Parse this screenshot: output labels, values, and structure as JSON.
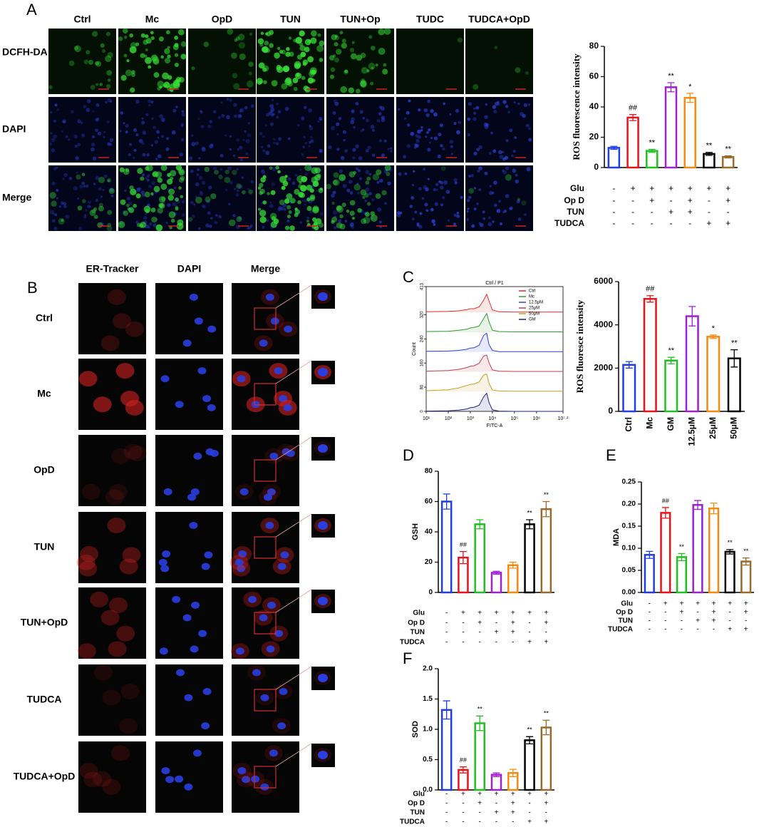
{
  "panel_a": {
    "letter": "A",
    "columns": [
      "Ctrl",
      "Mc",
      "OpD",
      "TUN",
      "TUN+Op",
      "TUDC",
      "TUDCA+OpD"
    ],
    "rows": [
      "DCFH-DA",
      "DAPI",
      "Merge"
    ]
  },
  "panel_b": {
    "letter": "B",
    "columns": [
      "ER-Tracker",
      "DAPI",
      "Merge"
    ],
    "rows": [
      "Ctrl",
      "Mc",
      "OpD",
      "TUN",
      "TUN+OpD",
      "TUDCA",
      "TUDCA+OpD"
    ]
  },
  "chart_data": [
    {
      "type": "bar",
      "ylabel": "ROS fluorescence intensity",
      "categories": [
        null,
        null,
        null,
        null,
        null,
        null,
        null
      ],
      "values": [
        13,
        33,
        11,
        53,
        46,
        9,
        7
      ],
      "errors": [
        1,
        2,
        1,
        3,
        3,
        1,
        0.7
      ],
      "annotations": [
        null,
        "##",
        "**",
        "**",
        "*",
        "**",
        "**"
      ],
      "colors": [
        "#1f3fe0",
        "#e8121a",
        "#20c020",
        "#a020d0",
        "#f58a10",
        "#000000",
        "#9a6a2a"
      ],
      "ylim": [
        0,
        80
      ],
      "yticks": [
        0,
        20,
        40,
        60,
        80
      ],
      "treatments": {
        "labels": [
          "Glu",
          "Op D",
          "TUN",
          "TUDCA"
        ],
        "signs": [
          [
            "-",
            "+",
            "+",
            "+",
            "+",
            "+",
            "+"
          ],
          [
            "-",
            "-",
            "+",
            "-",
            "+",
            "-",
            "+"
          ],
          [
            "-",
            "-",
            "-",
            "+",
            "+",
            "-",
            "-"
          ],
          [
            "-",
            "-",
            "-",
            "-",
            "-",
            "+",
            "+"
          ]
        ]
      }
    },
    {
      "type": "flow",
      "letter": "C",
      "title": "Ctrl / P1",
      "xlabel": "FITC-A",
      "ylabel": "Count",
      "xscale": "log",
      "x": [
        10,
        100,
        300,
        700,
        1000,
        1500,
        2500,
        4000,
        5500,
        7000,
        10000,
        20000,
        100000,
        1000000,
        15848932
      ],
      "series": [
        {
          "name": "Ctrl",
          "color": "#e03030",
          "values": [
            2,
            3,
            5,
            9,
            12,
            12,
            18,
            40,
            60,
            38,
            8,
            2,
            1,
            1,
            1
          ]
        },
        {
          "name": "Mc",
          "color": "#30a030",
          "values": [
            2,
            3,
            6,
            10,
            14,
            16,
            20,
            45,
            62,
            35,
            6,
            2,
            1,
            1,
            1
          ]
        },
        {
          "name": "12.5μM",
          "color": "#3040e0",
          "values": [
            2,
            3,
            5,
            9,
            13,
            14,
            22,
            55,
            62,
            25,
            5,
            1,
            1,
            1,
            1
          ]
        },
        {
          "name": "25μM",
          "color": "#c04050",
          "values": [
            2,
            4,
            8,
            14,
            18,
            20,
            28,
            52,
            55,
            30,
            6,
            2,
            1,
            1,
            1
          ]
        },
        {
          "name": "50μM",
          "color": "#c8a020",
          "values": [
            3,
            6,
            12,
            20,
            24,
            25,
            32,
            55,
            58,
            28,
            5,
            2,
            1,
            1,
            1
          ]
        },
        {
          "name": "GM",
          "color": "#202080",
          "values": [
            1,
            2,
            4,
            8,
            12,
            14,
            20,
            48,
            60,
            30,
            5,
            1,
            0,
            0,
            0
          ]
        }
      ],
      "xlim": [
        10,
        15848932
      ],
      "xticks": [
        {
          "value": 10,
          "label": "10¹"
        },
        {
          "value": 100,
          "label": "10²"
        },
        {
          "value": 1000,
          "label": "10³"
        },
        {
          "value": 10000,
          "label": "10⁴"
        },
        {
          "value": 100000,
          "label": "10⁵"
        },
        {
          "value": 1000000,
          "label": "10⁶"
        },
        {
          "value": 15848932,
          "label": "10⁷·²"
        }
      ],
      "ylim": [
        0,
        413
      ],
      "yticks": [
        0,
        80,
        160,
        240,
        320,
        413
      ]
    },
    {
      "type": "bar",
      "ylabel": "ROS fluoresce intensity",
      "categories": [
        "Ctrl",
        "Mc",
        "GM",
        "12.5μM",
        "25μM",
        "50μM"
      ],
      "values": [
        2150,
        5200,
        2350,
        4400,
        3450,
        2450
      ],
      "errors": [
        150,
        150,
        150,
        450,
        80,
        400
      ],
      "annotations": [
        null,
        "##",
        "**",
        null,
        "*",
        "**"
      ],
      "colors": [
        "#1f3fe0",
        "#e8121a",
        "#20c020",
        "#a020d0",
        "#f58a10",
        "#000000"
      ],
      "ylim": [
        0,
        6000
      ],
      "yticks": [
        0,
        2000,
        4000,
        6000
      ]
    },
    {
      "type": "bar",
      "letter": "D",
      "ylabel": "GSH",
      "categories": [
        null,
        null,
        null,
        null,
        null,
        null,
        null
      ],
      "values": [
        60,
        23,
        45,
        13,
        18,
        45,
        55
      ],
      "errors": [
        5,
        4,
        3,
        1,
        2,
        3,
        5
      ],
      "annotations": [
        null,
        "##",
        null,
        null,
        null,
        "**",
        "**"
      ],
      "colors": [
        "#1f3fe0",
        "#e8121a",
        "#20c020",
        "#a020d0",
        "#f58a10",
        "#000000",
        "#9a6a2a"
      ],
      "ylim": [
        0,
        80
      ],
      "yticks": [
        0,
        20,
        40,
        60,
        80
      ],
      "treatments": {
        "labels": [
          "Glu",
          "Op D",
          "TUN",
          "TUDCA"
        ],
        "signs": [
          [
            "-",
            "+",
            "+",
            "+",
            "+",
            "+",
            "+"
          ],
          [
            "-",
            "-",
            "+",
            "-",
            "+",
            "-",
            "+"
          ],
          [
            "-",
            "-",
            "-",
            "+",
            "+",
            "-",
            "-"
          ],
          [
            "-",
            "-",
            "-",
            "-",
            "-",
            "+",
            "+"
          ]
        ]
      }
    },
    {
      "type": "bar",
      "letter": "E",
      "ylabel": "MDA",
      "categories": [
        null,
        null,
        null,
        null,
        null,
        null,
        null
      ],
      "values": [
        0.085,
        0.18,
        0.08,
        0.198,
        0.19,
        0.092,
        0.07
      ],
      "errors": [
        0.008,
        0.012,
        0.008,
        0.01,
        0.012,
        0.005,
        0.008
      ],
      "annotations": [
        null,
        "##",
        "**",
        null,
        null,
        "**",
        "**"
      ],
      "colors": [
        "#1f3fe0",
        "#e8121a",
        "#20c020",
        "#a020d0",
        "#f58a10",
        "#000000",
        "#9a6a2a"
      ],
      "ylim": [
        0,
        0.25
      ],
      "yticks": [
        {
          "value": 0,
          "label": "0.00"
        },
        0.05,
        {
          "value": 0.1,
          "label": "0.10"
        },
        0.15,
        {
          "value": 0.2,
          "label": "0.20"
        },
        0.25
      ],
      "treatments": {
        "labels": [
          "Glu",
          "Op D",
          "TUN",
          "TUDCA"
        ],
        "signs": [
          [
            "-",
            "+",
            "+",
            "+",
            "+",
            "+",
            "+"
          ],
          [
            "-",
            "-",
            "+",
            "-",
            "+",
            "-",
            "+"
          ],
          [
            "-",
            "-",
            "-",
            "+",
            "+",
            "-",
            "-"
          ],
          [
            "-",
            "-",
            "-",
            "-",
            "-",
            "+",
            "+"
          ]
        ]
      }
    },
    {
      "type": "bar",
      "letter": "F",
      "ylabel": "SOD",
      "categories": [
        null,
        null,
        null,
        null,
        null,
        null,
        null
      ],
      "values": [
        1.32,
        0.33,
        1.1,
        0.25,
        0.28,
        0.82,
        1.03
      ],
      "errors": [
        0.15,
        0.05,
        0.12,
        0.03,
        0.06,
        0.06,
        0.12
      ],
      "annotations": [
        null,
        "##",
        "**",
        null,
        null,
        "**",
        "**"
      ],
      "colors": [
        "#1f3fe0",
        "#e8121a",
        "#20c020",
        "#a020d0",
        "#f58a10",
        "#000000",
        "#9a6a2a"
      ],
      "ylim": [
        0,
        2
      ],
      "yticks": [
        {
          "value": 0,
          "label": "0.0"
        },
        0.5,
        {
          "value": 1,
          "label": "1.0"
        },
        1.5,
        {
          "value": 2,
          "label": "2.0"
        }
      ],
      "treatments": {
        "labels": [
          "Glu",
          "Op D",
          "TUN",
          "TUDCA"
        ],
        "signs": [
          [
            "-",
            "+",
            "+",
            "+",
            "+",
            "+",
            "+"
          ],
          [
            "-",
            "-",
            "+",
            "-",
            "+",
            "-",
            "+"
          ],
          [
            "-",
            "-",
            "-",
            "+",
            "+",
            "-",
            "-"
          ],
          [
            "-",
            "-",
            "-",
            "-",
            "-",
            "+",
            "+"
          ]
        ]
      }
    }
  ]
}
